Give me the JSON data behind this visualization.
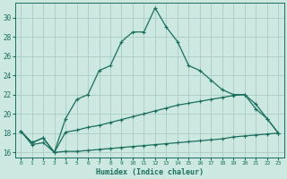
{
  "xlabel": "Humidex (Indice chaleur)",
  "bg_color": "#cce8e0",
  "grid_color": "#aaccC4",
  "line_color": "#1a6e5e",
  "xlim": [
    -0.5,
    23.5
  ],
  "ylim": [
    15.5,
    31.5
  ],
  "xticks": [
    0,
    1,
    2,
    3,
    4,
    5,
    6,
    7,
    8,
    9,
    10,
    11,
    12,
    13,
    14,
    15,
    16,
    17,
    18,
    19,
    20,
    21,
    22,
    23
  ],
  "yticks": [
    16,
    18,
    20,
    22,
    24,
    26,
    28,
    30
  ],
  "line1_x": [
    0,
    1,
    2,
    3,
    4,
    5,
    6,
    7,
    8,
    9,
    10,
    11,
    12,
    13,
    14,
    15,
    16,
    17,
    18,
    19,
    20,
    21,
    22,
    23
  ],
  "line1_y": [
    18.2,
    17.0,
    17.5,
    16.0,
    19.5,
    21.5,
    22.0,
    24.5,
    25.0,
    27.5,
    28.5,
    28.5,
    31.0,
    29.0,
    27.5,
    25.0,
    24.5,
    23.5,
    22.5,
    22.0,
    22.0,
    20.5,
    19.5,
    18.0
  ],
  "line2_x": [
    0,
    1,
    2,
    3,
    4,
    5,
    6,
    7,
    8,
    9,
    10,
    11,
    12,
    13,
    14,
    15,
    16,
    17,
    18,
    19,
    20,
    21,
    22,
    23
  ],
  "line2_y": [
    18.2,
    17.0,
    17.5,
    16.0,
    18.1,
    18.3,
    18.6,
    18.8,
    19.1,
    19.4,
    19.7,
    20.0,
    20.3,
    20.6,
    20.9,
    21.1,
    21.3,
    21.5,
    21.7,
    21.9,
    22.0,
    21.0,
    19.5,
    18.0
  ],
  "line3_x": [
    0,
    1,
    2,
    3,
    4,
    5,
    6,
    7,
    8,
    9,
    10,
    11,
    12,
    13,
    14,
    15,
    16,
    17,
    18,
    19,
    20,
    21,
    22,
    23
  ],
  "line3_y": [
    18.2,
    16.8,
    17.0,
    16.0,
    16.1,
    16.1,
    16.2,
    16.3,
    16.4,
    16.5,
    16.6,
    16.7,
    16.8,
    16.9,
    17.0,
    17.1,
    17.2,
    17.3,
    17.4,
    17.6,
    17.7,
    17.8,
    17.9,
    18.0
  ]
}
